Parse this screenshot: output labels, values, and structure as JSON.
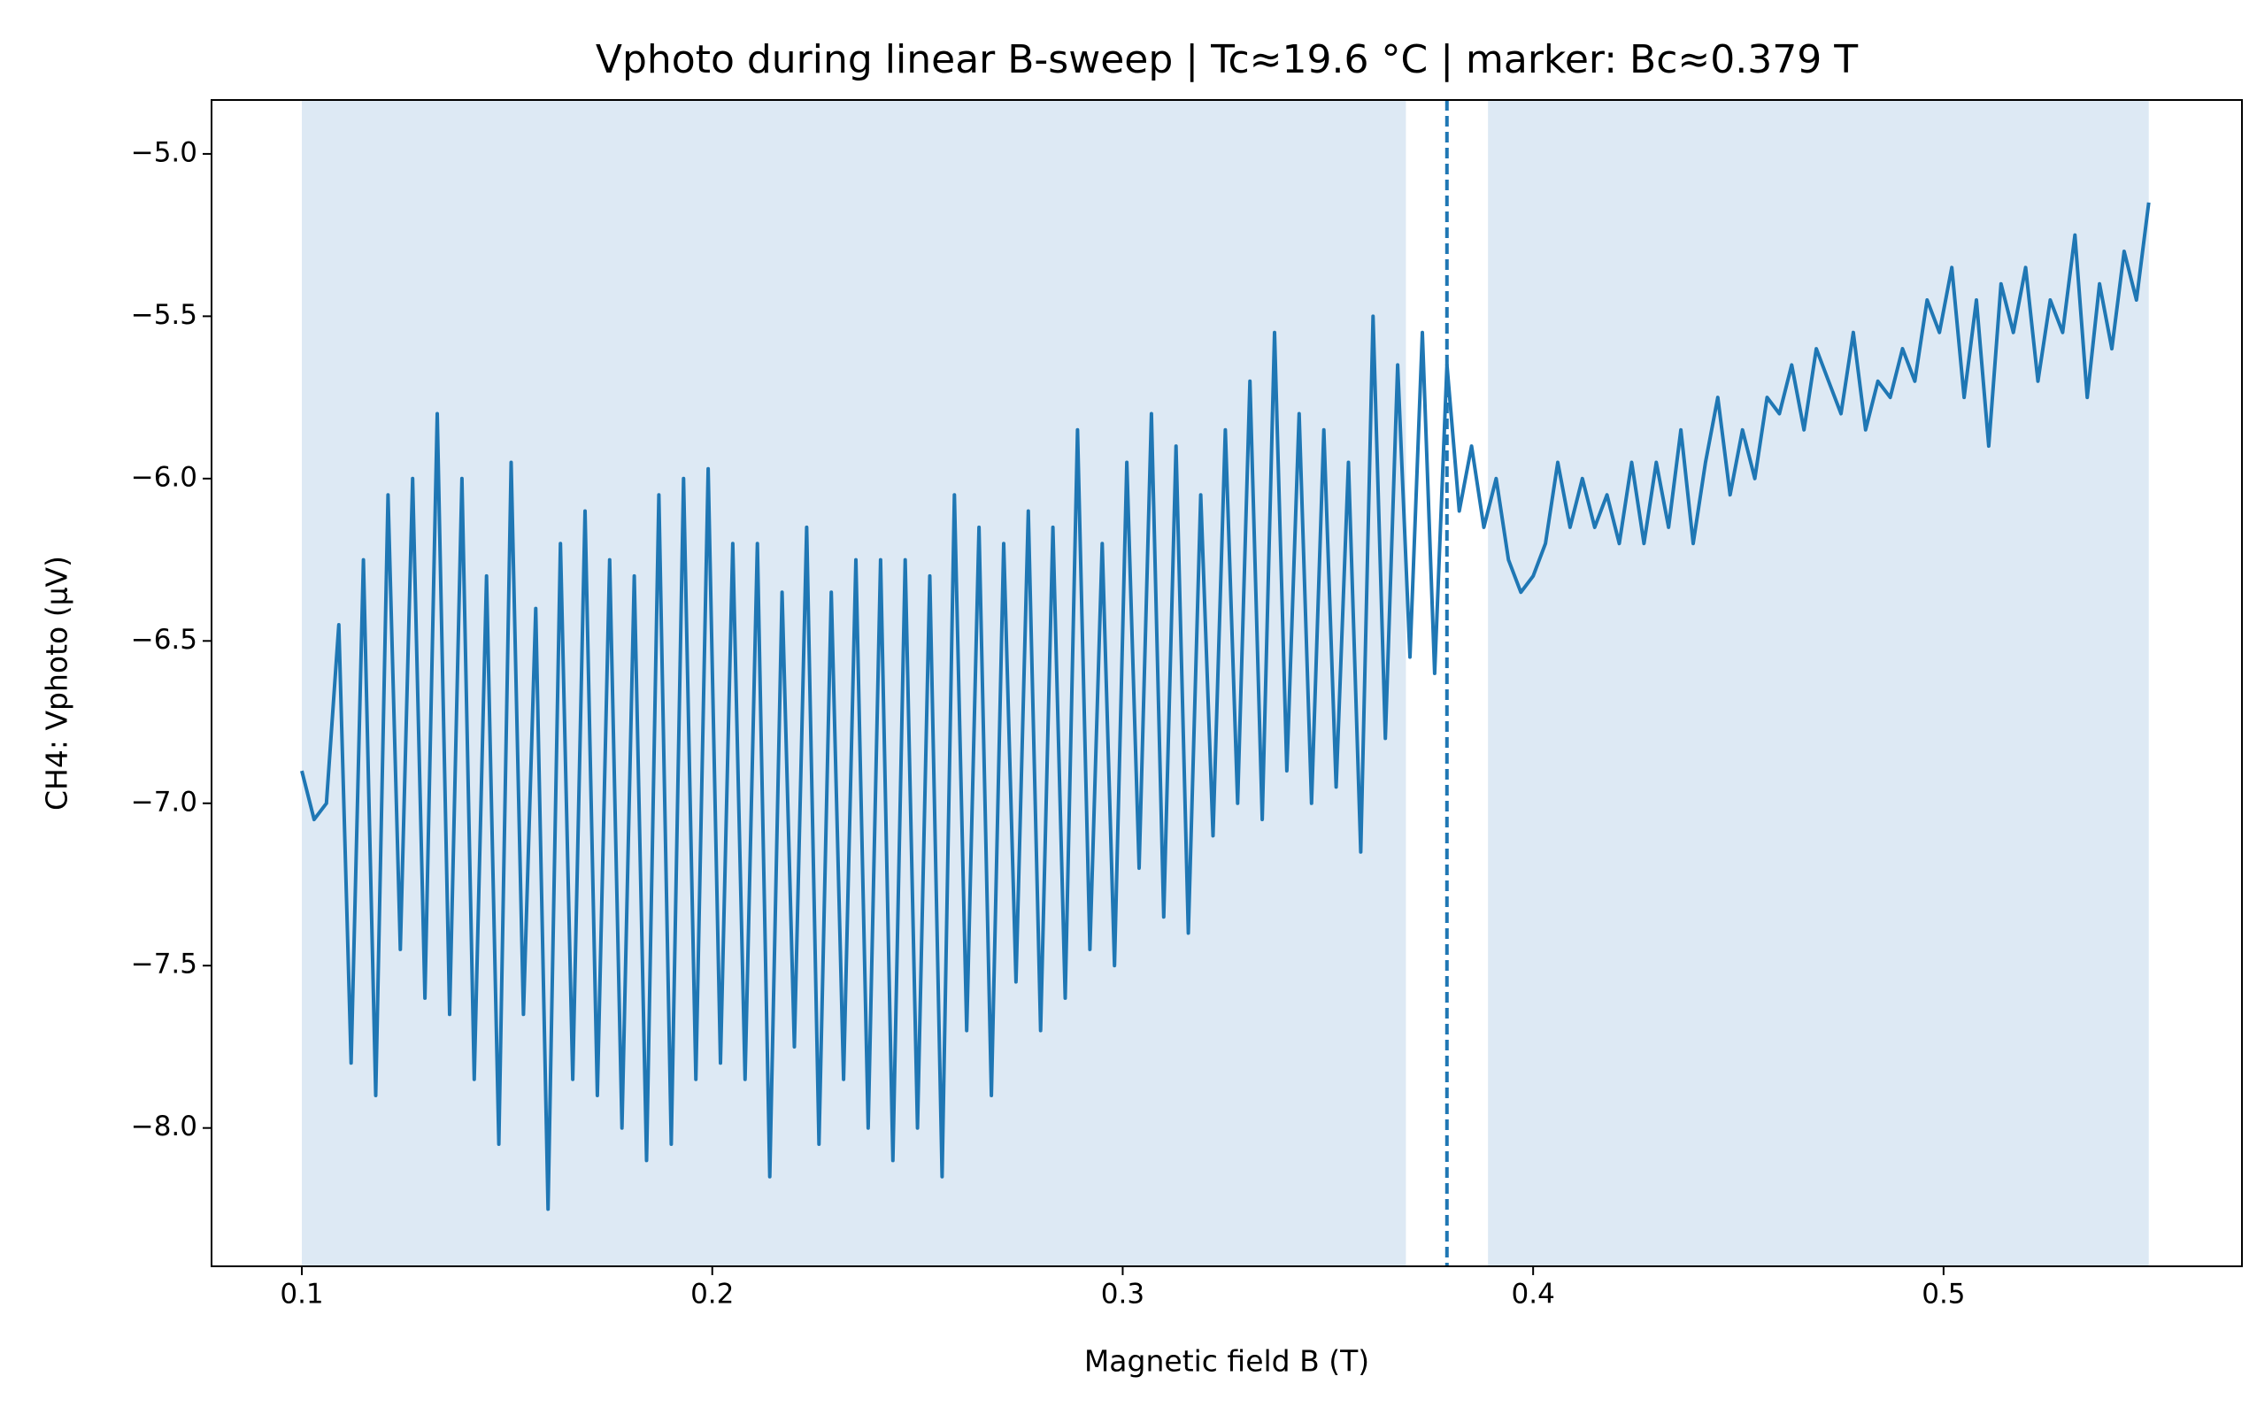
{
  "chart_data": {
    "type": "line",
    "title": "Vphoto during linear B-sweep | Tc≈19.6 °C | marker: Bc≈0.379 T",
    "x_label": "Magnetic field B (T)",
    "y_label": "CH4: Vphoto (µV)",
    "x": [
      0.1,
      0.103,
      0.106,
      0.109,
      0.112,
      0.115,
      0.118,
      0.121,
      0.124,
      0.127,
      0.13,
      0.133,
      0.136,
      0.139,
      0.142,
      0.145,
      0.148,
      0.151,
      0.154,
      0.157,
      0.16,
      0.163,
      0.166,
      0.169,
      0.172,
      0.175,
      0.178,
      0.181,
      0.184,
      0.187,
      0.19,
      0.193,
      0.196,
      0.199,
      0.202,
      0.205,
      0.208,
      0.211,
      0.214,
      0.217,
      0.22,
      0.223,
      0.226,
      0.229,
      0.232,
      0.235,
      0.238,
      0.241,
      0.244,
      0.247,
      0.25,
      0.253,
      0.256,
      0.259,
      0.262,
      0.265,
      0.268,
      0.271,
      0.274,
      0.277,
      0.28,
      0.283,
      0.286,
      0.289,
      0.292,
      0.295,
      0.298,
      0.301,
      0.304,
      0.307,
      0.31,
      0.313,
      0.316,
      0.319,
      0.322,
      0.325,
      0.328,
      0.331,
      0.334,
      0.337,
      0.34,
      0.343,
      0.346,
      0.349,
      0.352,
      0.355,
      0.358,
      0.361,
      0.364,
      0.367,
      0.37,
      0.373,
      0.376,
      0.379,
      0.382,
      0.385,
      0.388,
      0.391,
      0.394,
      0.397,
      0.4,
      0.403,
      0.406,
      0.409,
      0.412,
      0.415,
      0.418,
      0.421,
      0.424,
      0.427,
      0.43,
      0.433,
      0.436,
      0.439,
      0.442,
      0.445,
      0.448,
      0.451,
      0.454,
      0.457,
      0.46,
      0.463,
      0.466,
      0.469,
      0.472,
      0.475,
      0.478,
      0.481,
      0.484,
      0.487,
      0.49,
      0.493,
      0.496,
      0.499,
      0.502,
      0.505,
      0.508,
      0.511,
      0.514,
      0.517,
      0.52,
      0.523,
      0.526,
      0.529,
      0.532,
      0.535,
      0.538,
      0.541,
      0.544,
      0.547,
      0.55
    ],
    "series": [
      {
        "color": "#1f77b4",
        "values": [
          -6.9,
          -7.05,
          -7.0,
          -6.45,
          -7.8,
          -6.25,
          -7.9,
          -6.05,
          -7.45,
          -6.0,
          -7.6,
          -5.8,
          -7.65,
          -6.0,
          -7.85,
          -6.3,
          -8.05,
          -5.95,
          -7.65,
          -6.4,
          -8.25,
          -6.2,
          -7.85,
          -6.1,
          -7.9,
          -6.25,
          -8.0,
          -6.3,
          -8.1,
          -6.05,
          -8.05,
          -6.0,
          -7.85,
          -5.97,
          -7.8,
          -6.2,
          -7.85,
          -6.2,
          -8.15,
          -6.35,
          -7.75,
          -6.15,
          -8.05,
          -6.35,
          -7.85,
          -6.25,
          -8.0,
          -6.25,
          -8.1,
          -6.25,
          -8.0,
          -6.3,
          -8.15,
          -6.05,
          -7.7,
          -6.15,
          -7.9,
          -6.2,
          -7.55,
          -6.1,
          -7.7,
          -6.15,
          -7.6,
          -5.85,
          -7.45,
          -6.2,
          -7.5,
          -5.95,
          -7.2,
          -5.8,
          -7.35,
          -5.9,
          -7.4,
          -6.05,
          -7.1,
          -5.85,
          -7.0,
          -5.7,
          -7.05,
          -5.55,
          -6.9,
          -5.8,
          -7.0,
          -5.85,
          -6.95,
          -5.95,
          -7.15,
          -5.5,
          -6.8,
          -5.65,
          -6.55,
          -5.55,
          -6.6,
          -5.65,
          -6.1,
          -5.9,
          -6.15,
          -6.0,
          -6.25,
          -6.35,
          -6.3,
          -6.2,
          -5.95,
          -6.15,
          -6.0,
          -6.15,
          -6.05,
          -6.2,
          -5.95,
          -6.2,
          -5.95,
          -6.15,
          -5.85,
          -6.2,
          -5.95,
          -5.75,
          -6.05,
          -5.85,
          -6.0,
          -5.75,
          -5.8,
          -5.65,
          -5.85,
          -5.6,
          -5.7,
          -5.8,
          -5.55,
          -5.85,
          -5.7,
          -5.75,
          -5.6,
          -5.7,
          -5.45,
          -5.55,
          -5.35,
          -5.75,
          -5.45,
          -5.9,
          -5.4,
          -5.55,
          -5.35,
          -5.7,
          -5.45,
          -5.55,
          -5.25,
          -5.75,
          -5.4,
          -5.6,
          -5.3,
          -5.45,
          -5.15
        ]
      }
    ],
    "spans": [
      [
        0.1,
        0.369
      ],
      [
        0.389,
        0.55
      ]
    ],
    "span_color": "#dde9f4",
    "marker_x": 0.379,
    "xlim": [
      0.078,
      0.5727
    ],
    "ylim": [
      -8.426,
      -4.834
    ],
    "xticks": [
      0.1,
      0.2,
      0.3,
      0.4,
      0.5
    ],
    "yticks": [
      {
        "value": -5.0,
        "label": "−5.0"
      },
      {
        "value": -5.5,
        "label": "−5.5"
      },
      {
        "value": -6.0,
        "label": "−6.0"
      },
      {
        "value": -6.5,
        "label": "−6.5"
      },
      {
        "value": -7.0,
        "label": "−7.0"
      },
      {
        "value": -7.5,
        "label": "−7.5"
      },
      {
        "value": -8.0,
        "label": "−8.0"
      }
    ]
  }
}
